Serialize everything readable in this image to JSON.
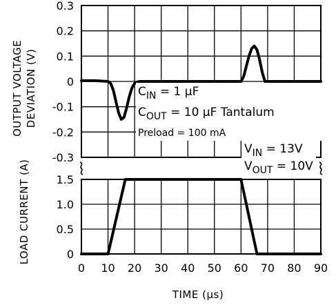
{
  "chart_data": {
    "type": "line",
    "title": "",
    "xlabel": "TIME (μs)",
    "x_ticks": [
      0,
      10,
      20,
      30,
      40,
      50,
      60,
      70,
      80,
      90
    ],
    "xlim": [
      0,
      90
    ],
    "grid": true,
    "panels": [
      {
        "ylabel_lines": [
          "OUTPUT VOLTAGE",
          "DEVIATION (V)"
        ],
        "ylim": [
          -0.3,
          0.3
        ],
        "y_ticks": [
          "0.3",
          "0.2",
          "0.1",
          "0",
          "-0.1",
          "-0.2",
          "-0.3"
        ],
        "series": [
          {
            "x": [
              0,
              5,
              10,
              11,
              12,
              13,
              14,
              15,
              16,
              17,
              18,
              19,
              20,
              21,
              22,
              30,
              40,
              50,
              60,
              61,
              62,
              63,
              64,
              65,
              66,
              67,
              68,
              69,
              70,
              80,
              90
            ],
            "y": [
              0.003,
              0.003,
              0.0,
              -0.008,
              -0.035,
              -0.08,
              -0.125,
              -0.15,
              -0.142,
              -0.105,
              -0.06,
              -0.025,
              -0.008,
              -0.002,
              0.0,
              0.0,
              0.0,
              0.0,
              0.0,
              0.02,
              0.06,
              0.1,
              0.13,
              0.14,
              0.125,
              0.085,
              0.035,
              0.0,
              0.0,
              0.0,
              0.0
            ]
          }
        ]
      },
      {
        "ylabel_lines": [
          "LOAD CURRENT (A)"
        ],
        "ylim": [
          0,
          1.5
        ],
        "y_ticks": [
          "1.5",
          "1.0",
          "0.5",
          "0"
        ],
        "series": [
          {
            "x": [
              0,
              10,
              16.5,
              60,
              66,
              90
            ],
            "y": [
              0,
              0,
              1.5,
              1.5,
              0,
              0
            ]
          }
        ]
      }
    ],
    "annotations": {
      "cin": {
        "main": "C",
        "sub": "IN",
        "rest": " = 1 μF"
      },
      "cout": {
        "main": "C",
        "sub": "OUT",
        "rest": " = 10 μF Tantalum"
      },
      "preload": "Preload = 100 mA",
      "vin": {
        "main": "V",
        "sub": "IN",
        "rest": " = 13V"
      },
      "vout": {
        "main": "V",
        "sub": "OUT",
        "rest": " = 10V"
      }
    }
  }
}
